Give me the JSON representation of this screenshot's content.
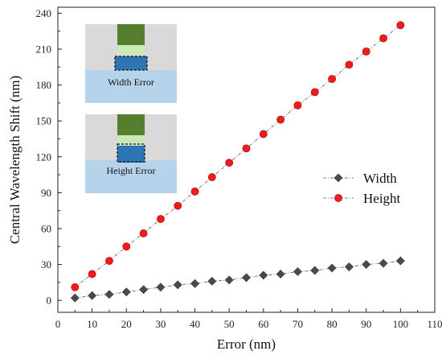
{
  "chart_data": {
    "type": "line",
    "title": "",
    "xlabel": "Error (nm)",
    "ylabel": "Central Wavelength Shift (nm)",
    "xlim": [
      0,
      110
    ],
    "ylim": [
      -10,
      245
    ],
    "xticks": [
      0,
      10,
      20,
      30,
      40,
      50,
      60,
      70,
      80,
      90,
      100,
      110
    ],
    "yticks": [
      0,
      30,
      60,
      90,
      120,
      150,
      180,
      210,
      240
    ],
    "grid": false,
    "legend_position": "right",
    "x": [
      5,
      10,
      15,
      20,
      25,
      30,
      35,
      40,
      45,
      50,
      55,
      60,
      65,
      70,
      75,
      80,
      85,
      90,
      95,
      100
    ],
    "series": [
      {
        "name": "Width",
        "marker": "diamond",
        "color": "#4a4a4a",
        "values": [
          2,
          4,
          5,
          7,
          9,
          11,
          13,
          14,
          16,
          17,
          19,
          21,
          22,
          24,
          25,
          27,
          28,
          30,
          31,
          33
        ]
      },
      {
        "name": "Height",
        "marker": "circle",
        "color": "#ee1c1c",
        "values": [
          11,
          22,
          33,
          45,
          56,
          68,
          79,
          91,
          103,
          115,
          127,
          139,
          151,
          163,
          174,
          185,
          197,
          208,
          219,
          230
        ]
      }
    ],
    "insets": [
      {
        "label": "Width Error"
      },
      {
        "label": "Height Error"
      }
    ]
  }
}
